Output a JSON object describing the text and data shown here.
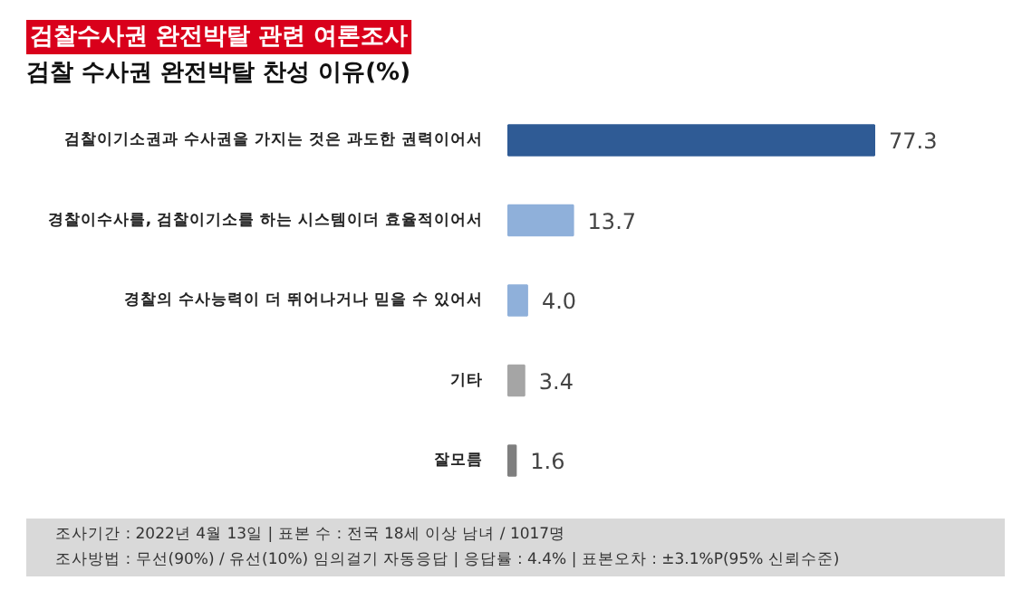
{
  "chart_data": {
    "type": "bar",
    "orientation": "horizontal",
    "title": "검찰수사권 완전박탈 관련 여론조사",
    "subtitle": "검찰 수사권 완전박탈 찬성 이유(%)",
    "categories": [
      "검찰이기소권과 수사권을 가지는 것은 과도한 권력이어서",
      "경찰이수사를, 검찰이기소를 하는 시스템이더 효율적이어서",
      "경찰의 수사능력이 더 뛰어나거나 믿을 수 있어서",
      "기타",
      "잘모름"
    ],
    "values": [
      77.3,
      13.7,
      4.0,
      3.4,
      1.6
    ],
    "value_labels": [
      "77.3",
      "13.7",
      "4.0",
      "3.4",
      "1.6"
    ],
    "colors": [
      "#2f5b95",
      "#8fb0da",
      "#8fb0da",
      "#a5a5a5",
      "#7f7f7f"
    ],
    "grid": false,
    "annotations": [
      "조사기간 : 2022년 4월 13일  |  표본 수 : 전국 18세 이상 남녀 / 1017명",
      "조사방법 : 무선(90%)  /  유선(10%) 임의걸기 자동응답  |  응답률 : 4.4%  |  표본오차 : ±3.1%P(95% 신뢰수준)"
    ]
  }
}
